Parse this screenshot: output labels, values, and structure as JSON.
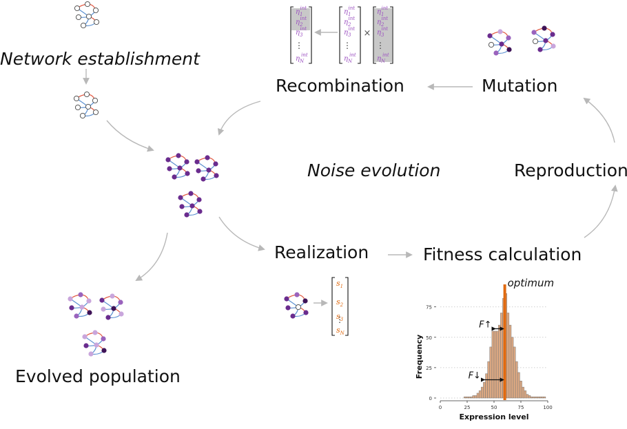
{
  "labels": {
    "network_establishment": "Network establishment",
    "recombination": "Recombination",
    "mutation": "Mutation",
    "noise_evolution": "Noise evolution",
    "reproduction": "Reproduction",
    "realization": "Realization",
    "fitness_calculation": "Fitness calculation",
    "evolved_population": "Evolved population"
  },
  "vectors": {
    "eta_symbol": "η",
    "eta_superscript": "int",
    "eta_subscripts": [
      "1",
      "2",
      "3",
      "N"
    ],
    "s_symbol": "s",
    "s_subscripts": [
      "1",
      "2",
      "3",
      "N"
    ],
    "times": "×",
    "dots": "⋮"
  },
  "colors": {
    "purple": "#6a2c8e",
    "light_purple": "#c9a6dc",
    "edge_red": "#e25a44",
    "edge_blue": "#5a8fd0",
    "orange": "#e06a10",
    "bar_fill": "#dca882",
    "arrow_gray": "#b8b8b8",
    "eta_text": "#9b4fc0"
  },
  "chart_data": {
    "type": "bar",
    "title": "",
    "xlabel": "Expression level",
    "ylabel": "Frequency",
    "xlim": [
      0,
      100
    ],
    "ylim": [
      0,
      85
    ],
    "xticks": [
      0,
      25,
      50,
      75,
      100
    ],
    "yticks": [
      0,
      25,
      50,
      75
    ],
    "grid": "horizontal dotted",
    "bin_width": 2,
    "bins_start": [
      22,
      24,
      26,
      28,
      30,
      32,
      34,
      36,
      38,
      40,
      42,
      44,
      46,
      48,
      50,
      52,
      54,
      56,
      58,
      60,
      62,
      64,
      66,
      68,
      70,
      72,
      74,
      76,
      78,
      80,
      82,
      84,
      86,
      88,
      90,
      92,
      94,
      96
    ],
    "values": [
      1,
      1,
      1,
      1,
      2,
      2,
      4,
      6,
      9,
      13,
      20,
      30,
      42,
      55,
      55,
      55,
      60,
      70,
      82,
      86,
      70,
      60,
      50,
      42,
      30,
      21,
      14,
      9,
      6,
      3,
      2,
      1,
      1,
      1,
      1,
      1,
      1,
      1
    ],
    "optimum": 60,
    "optimum_label": "optimum",
    "annotations": [
      {
        "text": "F↑",
        "from": 51,
        "to": 60,
        "y": 57
      },
      {
        "text": "F↓",
        "from": 41,
        "to": 60,
        "y": 15
      }
    ]
  }
}
